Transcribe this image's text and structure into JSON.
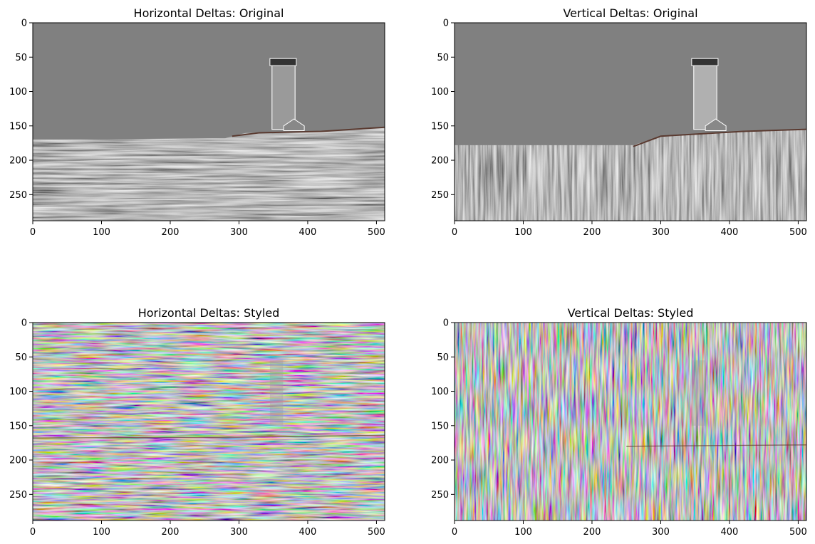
{
  "figure": {
    "panels": [
      {
        "id": "h-orig",
        "title": "Horizontal Deltas: Original",
        "xticks": [
          "0",
          "100",
          "200",
          "300",
          "400",
          "500"
        ],
        "yticks": [
          "0",
          "50",
          "100",
          "150",
          "200",
          "250"
        ],
        "image": {
          "kind": "horizontal",
          "styled": false,
          "seed": 11
        }
      },
      {
        "id": "v-orig",
        "title": "Vertical Deltas: Original",
        "xticks": [
          "0",
          "100",
          "200",
          "300",
          "400",
          "500"
        ],
        "yticks": [
          "0",
          "50",
          "100",
          "150",
          "200",
          "250"
        ],
        "image": {
          "kind": "vertical",
          "styled": false,
          "seed": 23
        }
      },
      {
        "id": "h-styled",
        "title": "Horizontal Deltas: Styled",
        "xticks": [
          "0",
          "100",
          "200",
          "300",
          "400",
          "500"
        ],
        "yticks": [
          "0",
          "50",
          "100",
          "150",
          "200",
          "250"
        ],
        "image": {
          "kind": "horizontal",
          "styled": true,
          "seed": 37
        }
      },
      {
        "id": "v-styled",
        "title": "Vertical Deltas: Styled",
        "xticks": [
          "0",
          "100",
          "200",
          "300",
          "400",
          "500"
        ],
        "yticks": [
          "0",
          "50",
          "100",
          "150",
          "200",
          "250"
        ],
        "image": {
          "kind": "vertical",
          "styled": true,
          "seed": 53
        }
      }
    ],
    "colors": {
      "background": "#ffffff",
      "image_base_gray": "#808080",
      "axes": "#000000"
    }
  }
}
